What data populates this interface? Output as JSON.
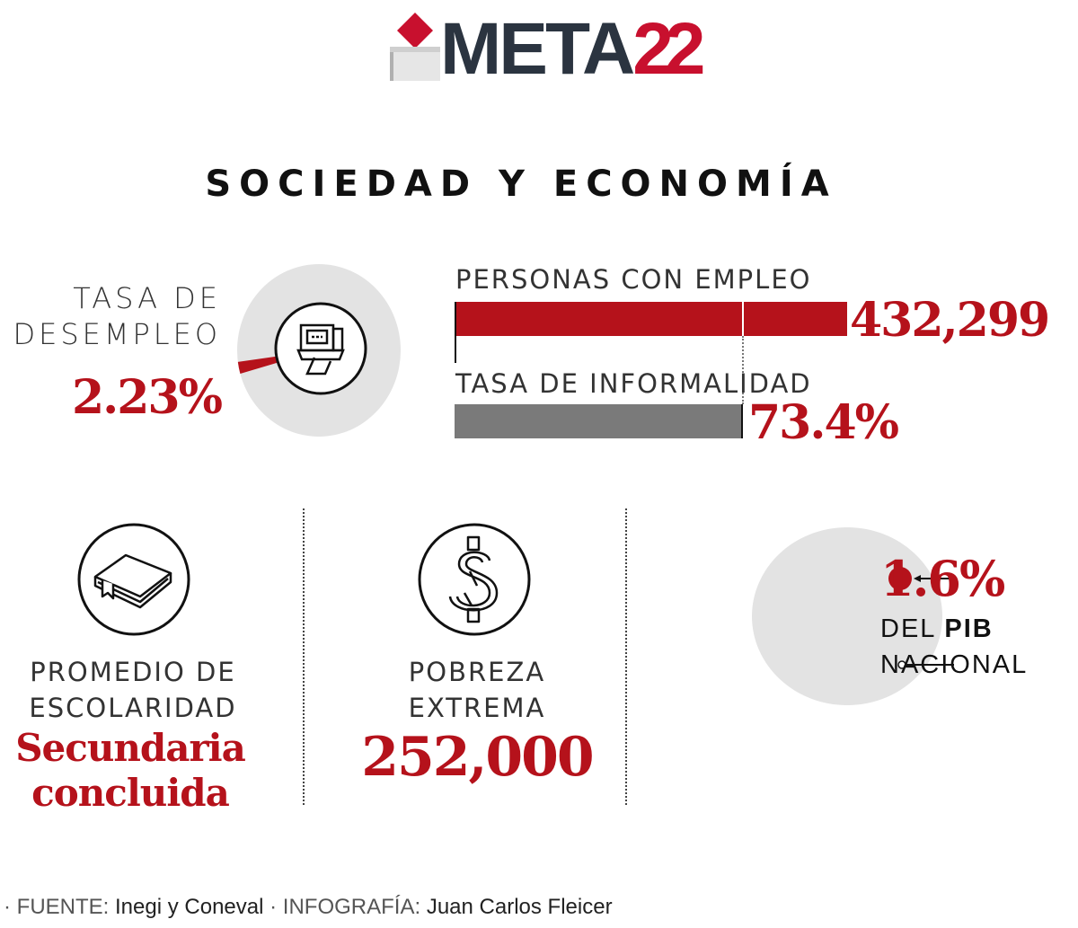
{
  "logo": {
    "word_main": "META",
    "word_accent": "22",
    "colors": {
      "dark": "#2b3440",
      "red": "#c8102e"
    }
  },
  "title": "SOCIEDAD Y ECONOMÍA",
  "unemployment": {
    "label_line1": "TASA DE",
    "label_line2": "DESEMPLEO",
    "value": "2.23%",
    "percent": 2.23,
    "icon": "cash-register-icon"
  },
  "employment": {
    "label": "PERSONAS CON EMPLEO",
    "value": "432,299"
  },
  "informality": {
    "label": "TASA DE INFORMALIDAD",
    "value": "73.4%",
    "percent": 73.4
  },
  "education": {
    "label_line1": "PROMEDIO DE",
    "label_line2": "ESCOLARIDAD",
    "value_line1": "Secundaria",
    "value_line2": "concluida",
    "icon": "book-icon"
  },
  "poverty": {
    "label_line1": "POBREZA",
    "label_line2": "EXTREMA",
    "value": "252,000",
    "icon": "dollar-icon"
  },
  "gdp": {
    "value": "1.6%",
    "percent": 1.6,
    "label_pre": "DEL ",
    "label_bold": "PIB",
    "label_line2": "NACIONAL"
  },
  "footer": {
    "source_key": "FUENTE:",
    "source_val": "Inegi y Coneval",
    "credit_key": "INFOGRAFÍA:",
    "credit_val": "Juan Carlos Fleicer"
  },
  "colors": {
    "red": "#b5121b",
    "gray": "#7a7a7a",
    "light_gray": "#e3e3e3"
  }
}
